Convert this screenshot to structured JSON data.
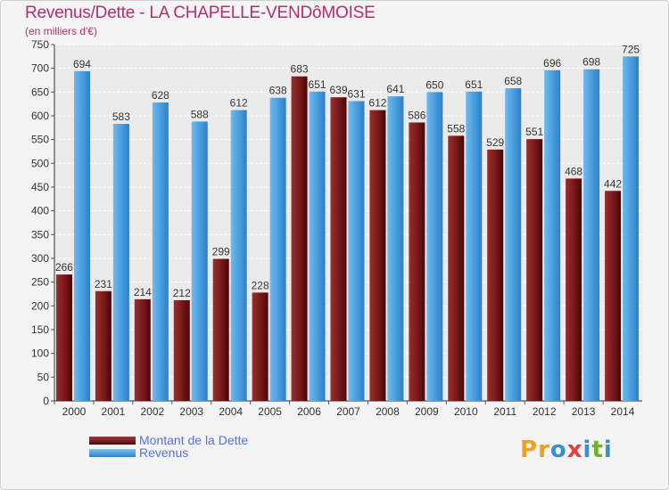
{
  "header": {
    "title": "Revenus/Dette - LA CHAPELLE-VENDôMOISE",
    "subtitle": "(en milliers d'€)"
  },
  "chart_data": {
    "type": "bar",
    "title": "Revenus/Dette - LA CHAPELLE-VENDôMOISE",
    "subtitle": "(en milliers d'€)",
    "xlabel": "",
    "ylabel": "",
    "ylim": [
      0,
      750
    ],
    "ytick_step": 50,
    "grid": true,
    "legend_position": "bottom-left",
    "categories": [
      "2000",
      "2001",
      "2002",
      "2003",
      "2004",
      "2005",
      "2006",
      "2007",
      "2008",
      "2009",
      "2010",
      "2011",
      "2012",
      "2013",
      "2014"
    ],
    "series": [
      {
        "name": "Montant de la Dette",
        "color": "#7a1a1a",
        "values": [
          266,
          231,
          214,
          212,
          299,
          228,
          683,
          639,
          612,
          586,
          558,
          529,
          551,
          468,
          442
        ]
      },
      {
        "name": "Revenus",
        "color": "#4a9fe0",
        "values": [
          694,
          583,
          628,
          588,
          612,
          638,
          651,
          631,
          641,
          650,
          651,
          658,
          696,
          698,
          725
        ]
      }
    ]
  },
  "legend": {
    "items": [
      {
        "label": "Montant de la Dette",
        "color": "#7a1a1a"
      },
      {
        "label": "Revenus",
        "color": "#4a9fe0"
      }
    ]
  },
  "brand": {
    "letters": [
      "P",
      "r",
      "o",
      "x",
      "i",
      "t",
      "i"
    ],
    "colors": [
      "#f0a020",
      "#f0a020",
      "#3a8fd0",
      "#e04040",
      "#3a8fd0",
      "#70b030",
      "#3a8fd0"
    ]
  }
}
